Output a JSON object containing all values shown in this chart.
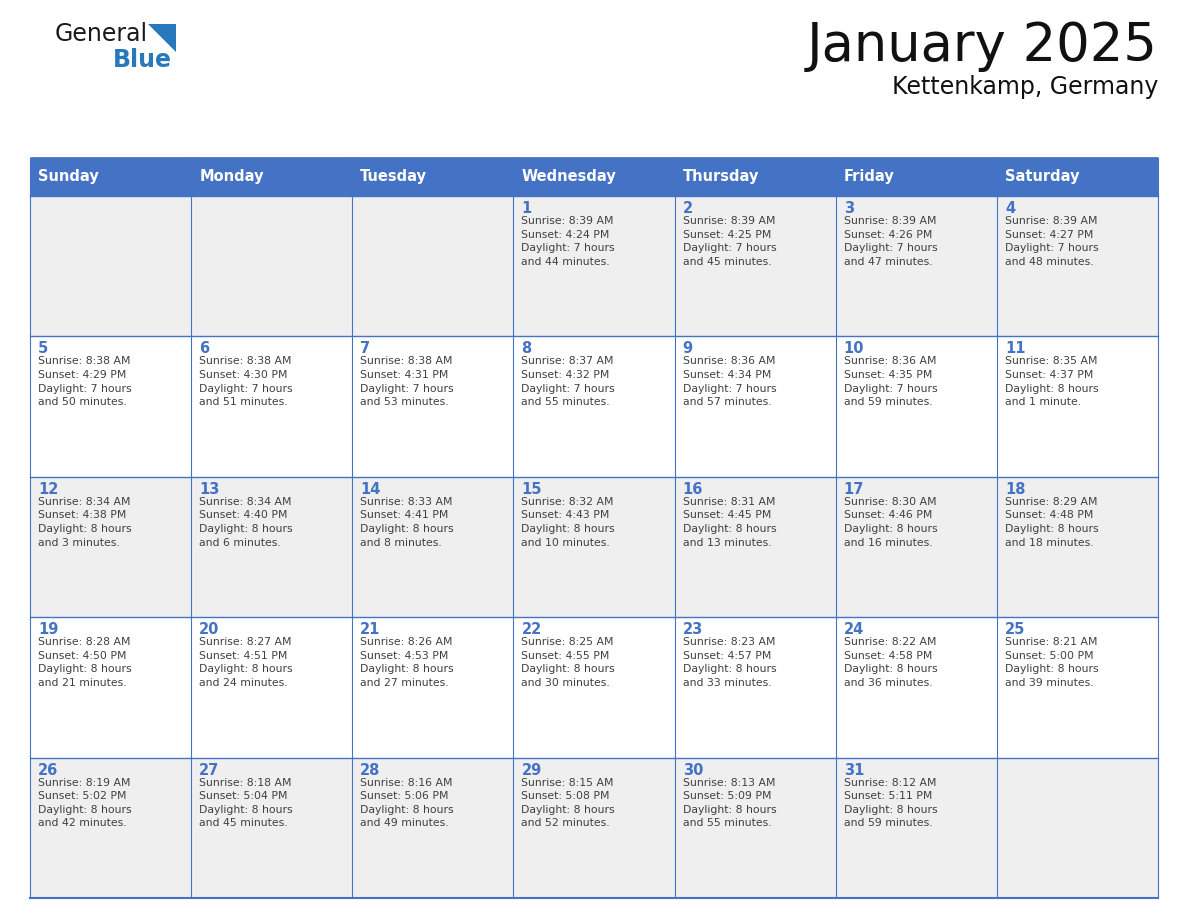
{
  "title": "January 2025",
  "subtitle": "Kettenkamp, Germany",
  "header_color": "#4472C4",
  "header_text_color": "#FFFFFF",
  "day_names": [
    "Sunday",
    "Monday",
    "Tuesday",
    "Wednesday",
    "Thursday",
    "Friday",
    "Saturday"
  ],
  "cell_bg_even": "#EFEFEF",
  "cell_bg_odd": "#FFFFFF",
  "border_color": "#4472C4",
  "date_color": "#4472C4",
  "text_color": "#404040",
  "logo_general_color": "#1a1a1a",
  "logo_blue_color": "#2878BE",
  "weeks": [
    [
      {
        "day": "",
        "info": ""
      },
      {
        "day": "",
        "info": ""
      },
      {
        "day": "",
        "info": ""
      },
      {
        "day": "1",
        "info": "Sunrise: 8:39 AM\nSunset: 4:24 PM\nDaylight: 7 hours\nand 44 minutes."
      },
      {
        "day": "2",
        "info": "Sunrise: 8:39 AM\nSunset: 4:25 PM\nDaylight: 7 hours\nand 45 minutes."
      },
      {
        "day": "3",
        "info": "Sunrise: 8:39 AM\nSunset: 4:26 PM\nDaylight: 7 hours\nand 47 minutes."
      },
      {
        "day": "4",
        "info": "Sunrise: 8:39 AM\nSunset: 4:27 PM\nDaylight: 7 hours\nand 48 minutes."
      }
    ],
    [
      {
        "day": "5",
        "info": "Sunrise: 8:38 AM\nSunset: 4:29 PM\nDaylight: 7 hours\nand 50 minutes."
      },
      {
        "day": "6",
        "info": "Sunrise: 8:38 AM\nSunset: 4:30 PM\nDaylight: 7 hours\nand 51 minutes."
      },
      {
        "day": "7",
        "info": "Sunrise: 8:38 AM\nSunset: 4:31 PM\nDaylight: 7 hours\nand 53 minutes."
      },
      {
        "day": "8",
        "info": "Sunrise: 8:37 AM\nSunset: 4:32 PM\nDaylight: 7 hours\nand 55 minutes."
      },
      {
        "day": "9",
        "info": "Sunrise: 8:36 AM\nSunset: 4:34 PM\nDaylight: 7 hours\nand 57 minutes."
      },
      {
        "day": "10",
        "info": "Sunrise: 8:36 AM\nSunset: 4:35 PM\nDaylight: 7 hours\nand 59 minutes."
      },
      {
        "day": "11",
        "info": "Sunrise: 8:35 AM\nSunset: 4:37 PM\nDaylight: 8 hours\nand 1 minute."
      }
    ],
    [
      {
        "day": "12",
        "info": "Sunrise: 8:34 AM\nSunset: 4:38 PM\nDaylight: 8 hours\nand 3 minutes."
      },
      {
        "day": "13",
        "info": "Sunrise: 8:34 AM\nSunset: 4:40 PM\nDaylight: 8 hours\nand 6 minutes."
      },
      {
        "day": "14",
        "info": "Sunrise: 8:33 AM\nSunset: 4:41 PM\nDaylight: 8 hours\nand 8 minutes."
      },
      {
        "day": "15",
        "info": "Sunrise: 8:32 AM\nSunset: 4:43 PM\nDaylight: 8 hours\nand 10 minutes."
      },
      {
        "day": "16",
        "info": "Sunrise: 8:31 AM\nSunset: 4:45 PM\nDaylight: 8 hours\nand 13 minutes."
      },
      {
        "day": "17",
        "info": "Sunrise: 8:30 AM\nSunset: 4:46 PM\nDaylight: 8 hours\nand 16 minutes."
      },
      {
        "day": "18",
        "info": "Sunrise: 8:29 AM\nSunset: 4:48 PM\nDaylight: 8 hours\nand 18 minutes."
      }
    ],
    [
      {
        "day": "19",
        "info": "Sunrise: 8:28 AM\nSunset: 4:50 PM\nDaylight: 8 hours\nand 21 minutes."
      },
      {
        "day": "20",
        "info": "Sunrise: 8:27 AM\nSunset: 4:51 PM\nDaylight: 8 hours\nand 24 minutes."
      },
      {
        "day": "21",
        "info": "Sunrise: 8:26 AM\nSunset: 4:53 PM\nDaylight: 8 hours\nand 27 minutes."
      },
      {
        "day": "22",
        "info": "Sunrise: 8:25 AM\nSunset: 4:55 PM\nDaylight: 8 hours\nand 30 minutes."
      },
      {
        "day": "23",
        "info": "Sunrise: 8:23 AM\nSunset: 4:57 PM\nDaylight: 8 hours\nand 33 minutes."
      },
      {
        "day": "24",
        "info": "Sunrise: 8:22 AM\nSunset: 4:58 PM\nDaylight: 8 hours\nand 36 minutes."
      },
      {
        "day": "25",
        "info": "Sunrise: 8:21 AM\nSunset: 5:00 PM\nDaylight: 8 hours\nand 39 minutes."
      }
    ],
    [
      {
        "day": "26",
        "info": "Sunrise: 8:19 AM\nSunset: 5:02 PM\nDaylight: 8 hours\nand 42 minutes."
      },
      {
        "day": "27",
        "info": "Sunrise: 8:18 AM\nSunset: 5:04 PM\nDaylight: 8 hours\nand 45 minutes."
      },
      {
        "day": "28",
        "info": "Sunrise: 8:16 AM\nSunset: 5:06 PM\nDaylight: 8 hours\nand 49 minutes."
      },
      {
        "day": "29",
        "info": "Sunrise: 8:15 AM\nSunset: 5:08 PM\nDaylight: 8 hours\nand 52 minutes."
      },
      {
        "day": "30",
        "info": "Sunrise: 8:13 AM\nSunset: 5:09 PM\nDaylight: 8 hours\nand 55 minutes."
      },
      {
        "day": "31",
        "info": "Sunrise: 8:12 AM\nSunset: 5:11 PM\nDaylight: 8 hours\nand 59 minutes."
      },
      {
        "day": "",
        "info": ""
      }
    ]
  ]
}
